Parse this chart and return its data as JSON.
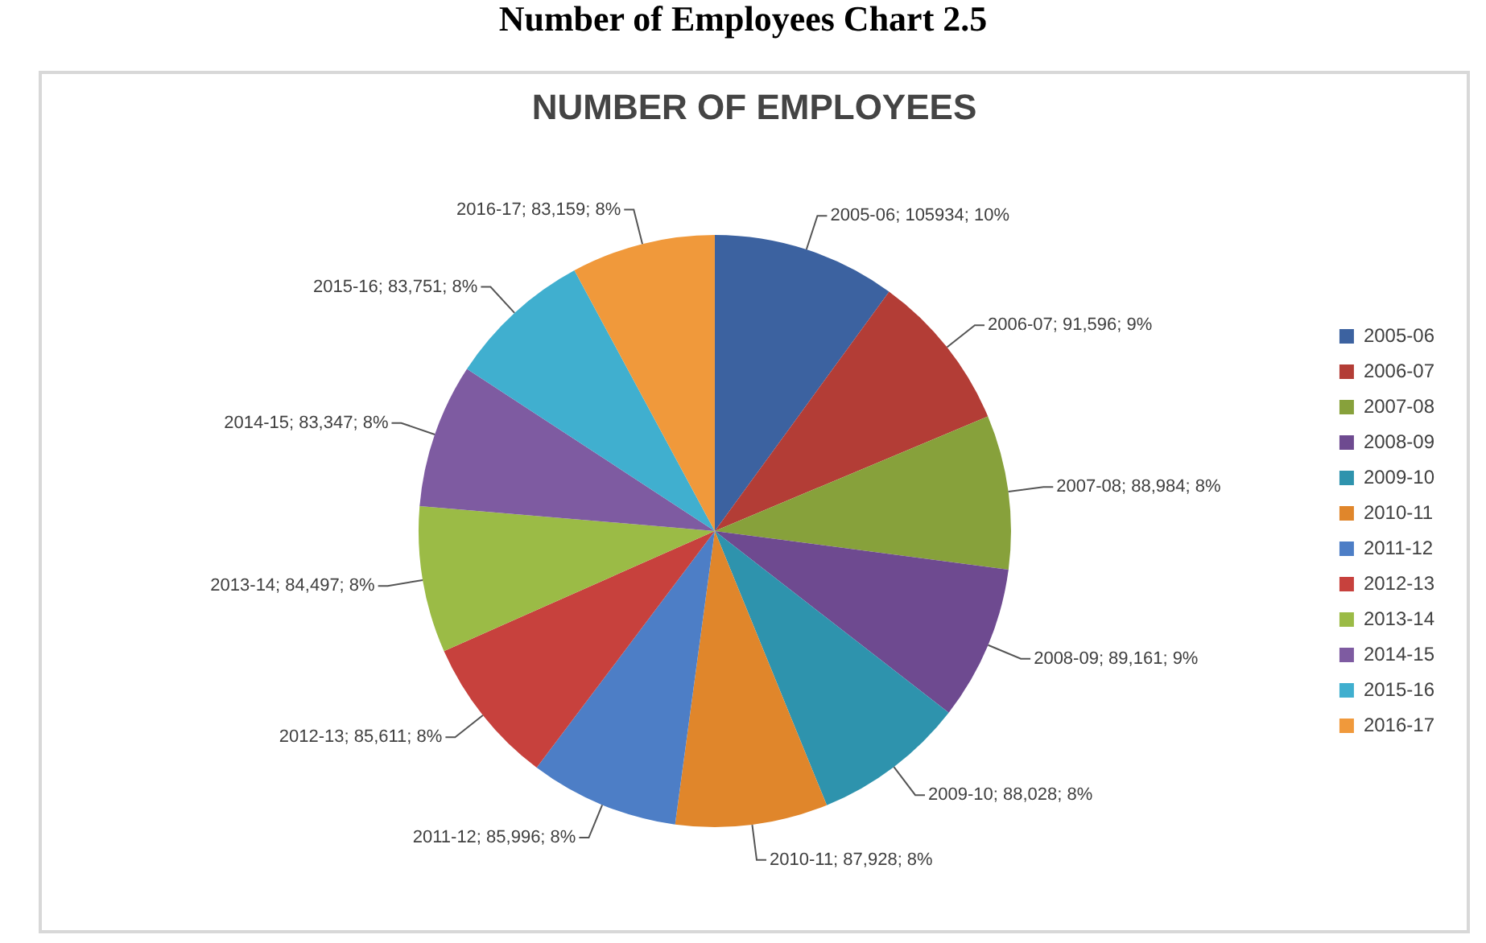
{
  "chart_data": {
    "type": "pie",
    "title": "Number of Employees  Chart 2.5",
    "subtitle": "NUMBER OF EMPLOYEES",
    "categories": [
      "2005-06",
      "2006-07",
      "2007-08",
      "2008-09",
      "2009-10",
      "2010-11",
      "2011-12",
      "2012-13",
      "2013-14",
      "2014-15",
      "2015-16",
      "2016-17"
    ],
    "values": [
      105934,
      91596,
      88984,
      89161,
      88028,
      87928,
      85996,
      85611,
      84497,
      83347,
      83751,
      83159
    ],
    "value_labels": [
      "2005-06; 105934; 10%",
      "2006-07; 91,596; 9%",
      "2007-08; 88,984; 8%",
      "2008-09; 89,161; 9%",
      "2009-10; 88,028; 8%",
      "2010-11; 87,928; 8%",
      "2011-12; 85,996; 8%",
      "2012-13; 85,611; 8%",
      "2013-14; 84,497; 8%",
      "2014-15; 83,347; 8%",
      "2015-16; 83,751; 8%",
      "2016-17; 83,159; 8%"
    ],
    "colors": [
      "#3c62a0",
      "#b33d36",
      "#87a13b",
      "#6e4a90",
      "#2e93ad",
      "#e0862b",
      "#4d7ec6",
      "#c7413d",
      "#9bbb46",
      "#7e5ba1",
      "#40afcf",
      "#f0993b"
    ],
    "legend": "right"
  }
}
